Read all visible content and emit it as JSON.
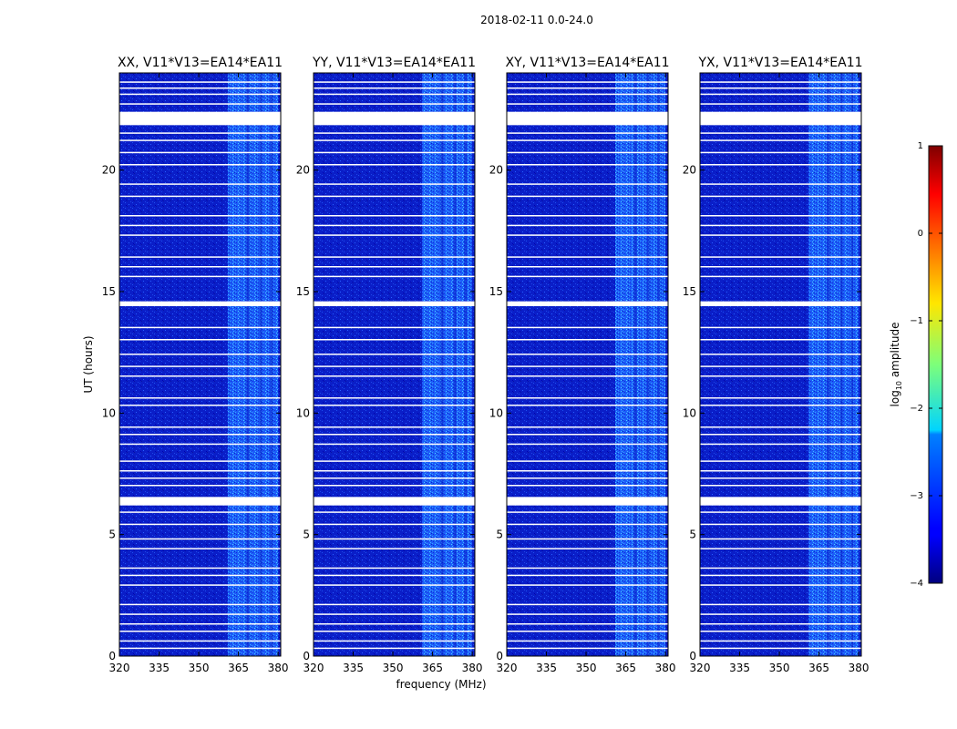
{
  "figure": {
    "suptitle": "2018-02-11 0.0-24.0"
  },
  "chart_data": {
    "type": "heatmap",
    "title": "2018-02-11 0.0-24.0",
    "xlabel": "frequency (MHz)",
    "ylabel": "UT (hours)",
    "xlim": [
      320,
      381
    ],
    "ylim": [
      0,
      24
    ],
    "x_ticks": [
      "320",
      "335",
      "350",
      "365",
      "380"
    ],
    "x_tick_values": [
      320,
      335,
      350,
      365,
      380
    ],
    "y_ticks": [
      "0",
      "5",
      "10",
      "15",
      "20"
    ],
    "y_tick_values": [
      0,
      5,
      10,
      15,
      20
    ],
    "rfi_band_mhz": [
      361,
      380
    ],
    "panels": [
      {
        "name": "xx",
        "title": "XX, V11*V13=EA14*EA11"
      },
      {
        "name": "yy",
        "title": "YY, V11*V13=EA14*EA11"
      },
      {
        "name": "xy",
        "title": "XY, V11*V13=EA14*EA11"
      },
      {
        "name": "yx",
        "title": "YX, V11*V13=EA14*EA11"
      }
    ],
    "flagged_ut_hours": [
      [
        21.85,
        22.4
      ],
      [
        14.4,
        14.6
      ],
      [
        6.2,
        6.55
      ],
      [
        23.6,
        23.65
      ],
      [
        23.35,
        23.4
      ],
      [
        23.1,
        23.15
      ],
      [
        22.7,
        22.75
      ],
      [
        21.5,
        21.55
      ],
      [
        21.2,
        21.25
      ],
      [
        20.7,
        20.75
      ],
      [
        20.2,
        20.25
      ],
      [
        19.4,
        19.45
      ],
      [
        18.9,
        18.95
      ],
      [
        18.1,
        18.15
      ],
      [
        17.7,
        17.75
      ],
      [
        17.3,
        17.35
      ],
      [
        16.4,
        16.45
      ],
      [
        16.0,
        16.05
      ],
      [
        15.6,
        15.65
      ],
      [
        13.5,
        13.55
      ],
      [
        13.0,
        13.05
      ],
      [
        12.4,
        12.45
      ],
      [
        11.9,
        11.95
      ],
      [
        11.5,
        11.55
      ],
      [
        10.6,
        10.65
      ],
      [
        10.3,
        10.35
      ],
      [
        9.4,
        9.45
      ],
      [
        9.1,
        9.15
      ],
      [
        8.7,
        8.75
      ],
      [
        8.0,
        8.05
      ],
      [
        7.6,
        7.65
      ],
      [
        7.3,
        7.35
      ],
      [
        7.0,
        7.05
      ],
      [
        5.9,
        5.95
      ],
      [
        5.4,
        5.45
      ],
      [
        4.8,
        4.85
      ],
      [
        4.4,
        4.45
      ],
      [
        3.6,
        3.65
      ],
      [
        3.3,
        3.35
      ],
      [
        2.9,
        2.95
      ],
      [
        2.1,
        2.15
      ],
      [
        1.7,
        1.75
      ],
      [
        1.3,
        1.35
      ],
      [
        1.0,
        1.05
      ],
      [
        0.6,
        0.65
      ],
      [
        0.3,
        0.35
      ]
    ],
    "colorbar": {
      "label": "log10 amplitude",
      "label_prefix": "log",
      "label_sub": "10",
      "label_suffix": " amplitude",
      "range": [
        -4,
        1
      ],
      "ticks": [
        "1",
        "0",
        "−1",
        "−2",
        "−3",
        "−4"
      ],
      "tick_values": [
        1,
        0,
        -1,
        -2,
        -3,
        -4
      ],
      "colormap": "jet"
    }
  }
}
